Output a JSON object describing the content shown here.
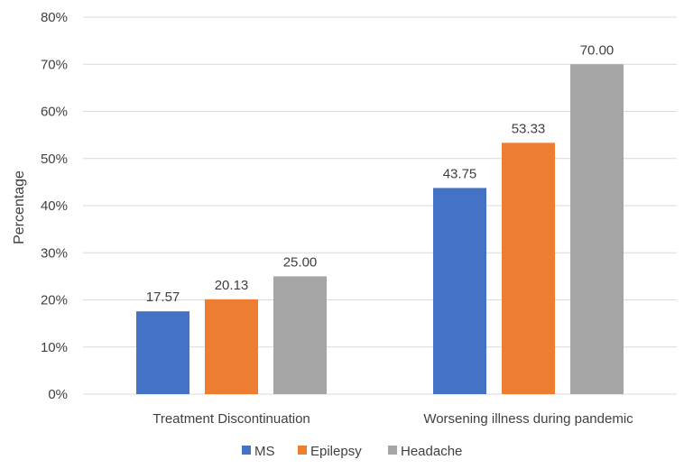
{
  "chart_data": {
    "type": "bar",
    "title": "",
    "xlabel": "",
    "ylabel": "Percentage",
    "ylim": [
      0,
      80
    ],
    "yticks": [
      "0%",
      "10%",
      "20%",
      "30%",
      "40%",
      "50%",
      "60%",
      "70%",
      "80%"
    ],
    "grid": true,
    "legend_position": "bottom",
    "categories": [
      "Treatment Discontinuation",
      "Worsening illness during pandemic"
    ],
    "series": [
      {
        "name": "MS",
        "values": [
          17.57,
          43.75
        ],
        "color": "#4472C4"
      },
      {
        "name": "Epilepsy",
        "values": [
          20.13,
          53.33
        ],
        "color": "#ED7D31"
      },
      {
        "name": "Headache",
        "values": [
          25.0,
          70.0
        ],
        "color": "#A5A5A5"
      }
    ],
    "data_labels": [
      [
        "17.57",
        "43.75"
      ],
      [
        "20.13",
        "53.33"
      ],
      [
        "25.00",
        "70.00"
      ]
    ]
  }
}
